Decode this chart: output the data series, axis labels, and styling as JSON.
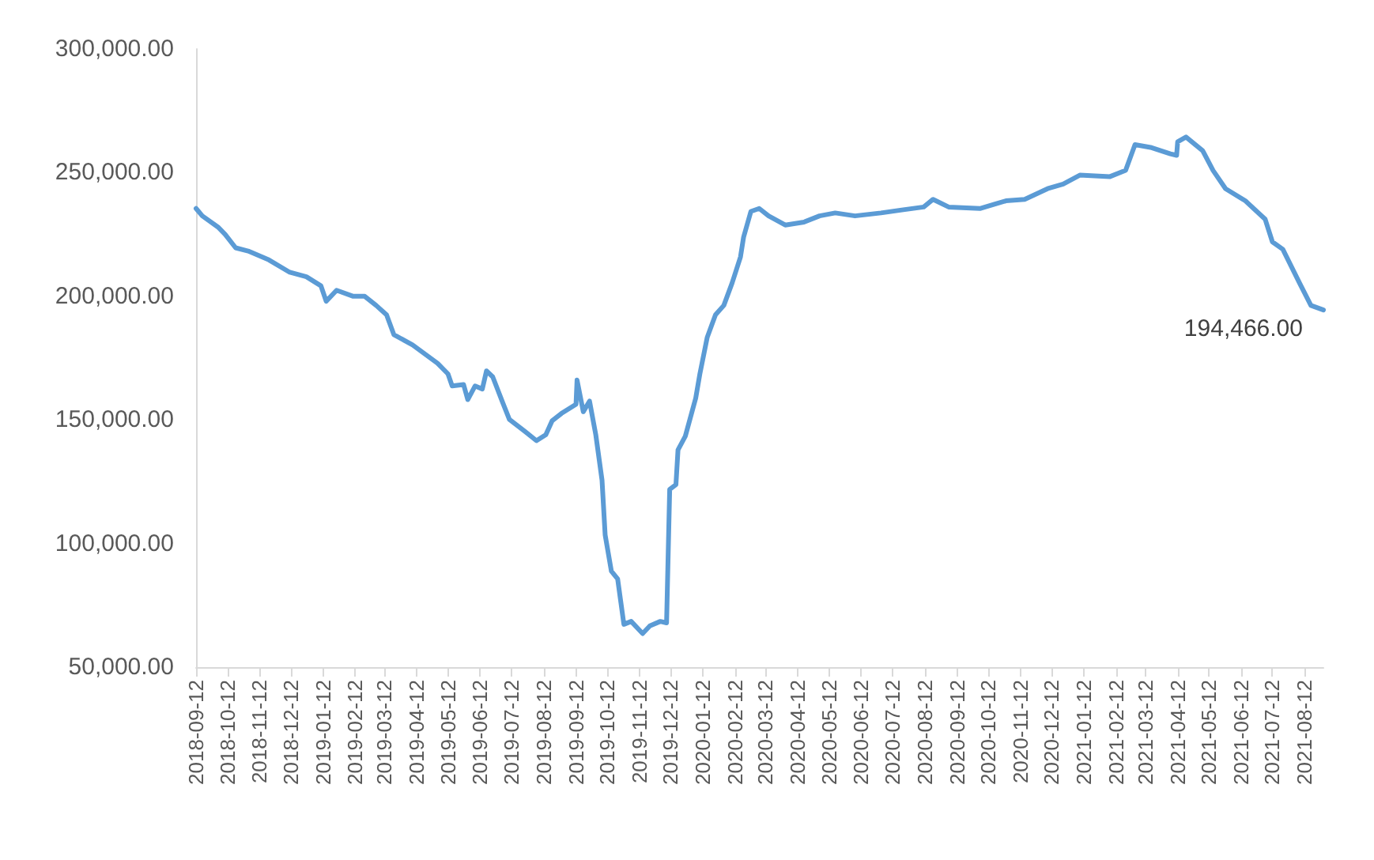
{
  "chart_data": {
    "type": "line",
    "x": [
      "2018-09-12",
      "2018-09-18",
      "2018-10-03",
      "2018-10-10",
      "2018-10-20",
      "2018-11-01",
      "2018-11-21",
      "2018-12-11",
      "2018-12-27",
      "2019-01-10",
      "2019-01-15",
      "2019-01-25",
      "2019-02-10",
      "2019-02-21",
      "2019-03-04",
      "2019-03-14",
      "2019-03-21",
      "2019-04-08",
      "2019-05-02",
      "2019-05-12",
      "2019-05-16",
      "2019-05-27",
      "2019-05-31",
      "2019-06-07",
      "2019-06-14",
      "2019-06-18",
      "2019-06-24",
      "2019-07-03",
      "2019-07-10",
      "2019-07-25",
      "2019-08-05",
      "2019-08-14",
      "2019-08-20",
      "2019-08-29",
      "2019-09-12",
      "2019-09-13",
      "2019-09-19",
      "2019-09-25",
      "2019-10-01",
      "2019-10-07",
      "2019-10-10",
      "2019-10-16",
      "2019-10-22",
      "2019-10-28",
      "2019-11-04",
      "2019-11-15",
      "2019-11-22",
      "2019-12-02",
      "2019-12-08",
      "2019-12-11",
      "2019-12-17",
      "2019-12-19",
      "2019-12-26",
      "2020-01-05",
      "2020-01-09",
      "2020-01-16",
      "2020-01-24",
      "2020-02-01",
      "2020-02-09",
      "2020-02-17",
      "2020-02-20",
      "2020-02-27",
      "2020-03-06",
      "2020-03-15",
      "2020-03-31",
      "2020-04-18",
      "2020-05-03",
      "2020-05-18",
      "2020-06-06",
      "2020-07-01",
      "2020-07-21",
      "2020-08-11",
      "2020-08-20",
      "2020-09-04",
      "2020-10-04",
      "2020-10-29",
      "2020-11-16",
      "2020-12-08",
      "2020-12-23",
      "2021-01-08",
      "2021-02-06",
      "2021-02-21",
      "2021-03-02",
      "2021-03-18",
      "2021-04-05",
      "2021-04-11",
      "2021-04-12",
      "2021-04-20",
      "2021-05-06",
      "2021-05-16",
      "2021-05-28",
      "2021-06-16",
      "2021-07-05",
      "2021-07-12",
      "2021-07-22",
      "2021-08-07",
      "2021-08-18",
      "2021-08-30"
    ],
    "series": [
      {
        "color": "#5b9bd5",
        "values": [
          235500,
          232500,
          228000,
          225000,
          219600,
          218300,
          214700,
          209700,
          207900,
          204200,
          198000,
          202400,
          200000,
          200000,
          196300,
          192500,
          184500,
          180300,
          172900,
          168600,
          163700,
          164300,
          158200,
          163700,
          162500,
          169800,
          167400,
          157600,
          150200,
          145300,
          141600,
          144000,
          149600,
          152600,
          156300,
          166100,
          153300,
          157600,
          144000,
          125600,
          103500,
          88800,
          85700,
          67300,
          68500,
          63600,
          66700,
          68500,
          67900,
          121900,
          123800,
          137900,
          143400,
          158800,
          168600,
          183300,
          192500,
          196300,
          205400,
          215900,
          223900,
          234300,
          235500,
          232500,
          228800,
          230000,
          232500,
          233700,
          232500,
          233700,
          234900,
          236100,
          239200,
          236100,
          235500,
          238600,
          239200,
          243500,
          245400,
          249000,
          248400,
          250900,
          261300,
          260100,
          257600,
          257000,
          262500,
          264400,
          258900,
          250900,
          243500,
          238600,
          231200,
          222000,
          219000,
          205400,
          196300,
          194466
        ]
      }
    ],
    "xlim": [
      "2018-09-12",
      "2021-08-30"
    ],
    "xticks": [
      "2018-09-12",
      "2018-10-12",
      "2018-11-12",
      "2018-12-12",
      "2019-01-12",
      "2019-02-12",
      "2019-03-12",
      "2019-04-12",
      "2019-05-12",
      "2019-06-12",
      "2019-07-12",
      "2019-08-12",
      "2019-09-12",
      "2019-10-12",
      "2019-11-12",
      "2019-12-12",
      "2020-01-12",
      "2020-02-12",
      "2020-03-12",
      "2020-04-12",
      "2020-05-12",
      "2020-06-12",
      "2020-07-12",
      "2020-08-12",
      "2020-09-12",
      "2020-10-12",
      "2020-11-12",
      "2020-12-12",
      "2021-01-12",
      "2021-02-12",
      "2021-03-12",
      "2021-04-12",
      "2021-05-12",
      "2021-06-12",
      "2021-07-12",
      "2021-08-12"
    ],
    "ylim": [
      50000,
      300000
    ],
    "yticks": [
      {
        "value": 50000,
        "label": "50,000.00"
      },
      {
        "value": 100000,
        "label": "100,000.00"
      },
      {
        "value": 150000,
        "label": "150,000.00"
      },
      {
        "value": 200000,
        "label": "200,000.00"
      },
      {
        "value": 250000,
        "label": "250,000.00"
      },
      {
        "value": 300000,
        "label": "300,000.00"
      }
    ],
    "annotations": [
      {
        "text": "194,466.00",
        "x": "2021-08-30",
        "y": 194466
      }
    ],
    "grid": false,
    "marker": "none",
    "line_style": "solid"
  }
}
